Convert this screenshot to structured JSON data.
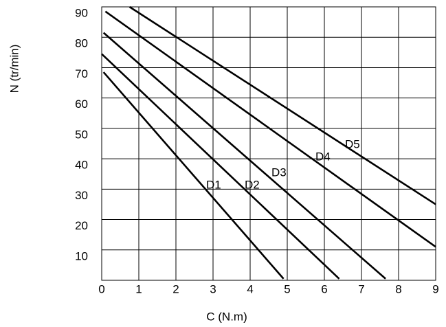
{
  "chart_data": {
    "type": "line",
    "x_label": "C (N.m)",
    "y_label": "N (tr/min)",
    "xlim": [
      0,
      9
    ],
    "ylim": [
      0,
      90
    ],
    "xticks": [
      0,
      1,
      2,
      3,
      4,
      5,
      6,
      7,
      8,
      9
    ],
    "yticks": [
      10,
      20,
      30,
      40,
      50,
      60,
      70,
      80,
      90
    ],
    "grid": true,
    "series": [
      {
        "name": "D1",
        "color": "#000000",
        "x": [
          0.05,
          4.9
        ],
        "values": [
          68.5,
          0.5
        ]
      },
      {
        "name": "D2",
        "color": "#000000",
        "x": [
          0,
          6.4
        ],
        "values": [
          74.5,
          0.5
        ]
      },
      {
        "name": "D3",
        "color": "#000000",
        "x": [
          0.05,
          7.65
        ],
        "values": [
          81.5,
          0.5
        ]
      },
      {
        "name": "D4",
        "color": "#000000",
        "x": [
          0.1,
          9
        ],
        "values": [
          88.5,
          11
        ]
      },
      {
        "name": "D5",
        "color": "#000000",
        "x": [
          0.75,
          9
        ],
        "values": [
          90,
          25
        ]
      }
    ]
  }
}
